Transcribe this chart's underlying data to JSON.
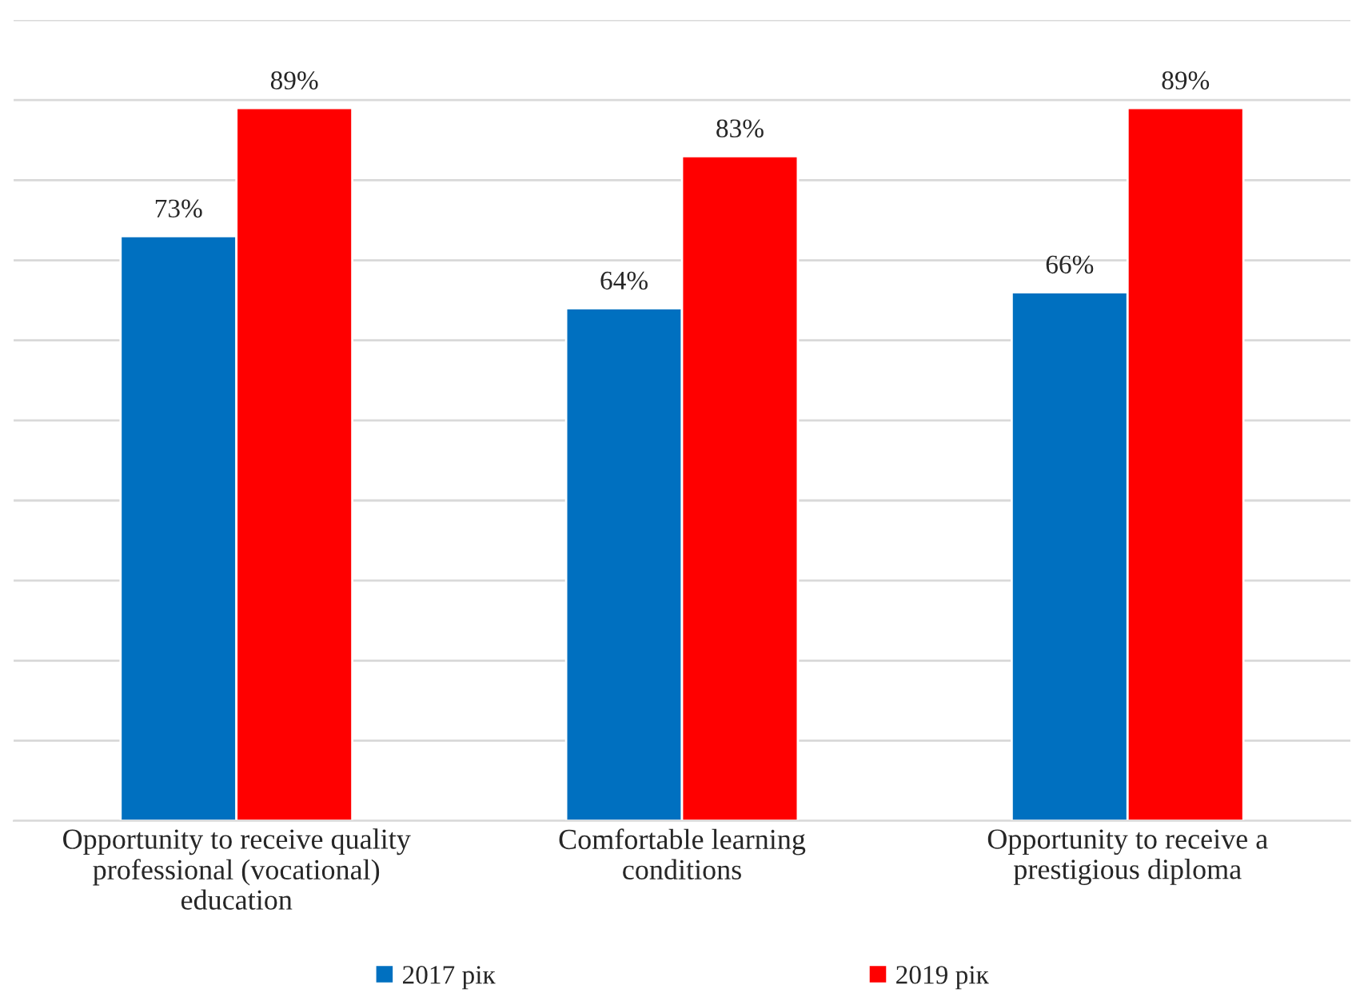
{
  "chart_data": {
    "type": "bar",
    "categories": [
      "Opportunity to receive quality professional (vocational) education",
      "Comfortable learning conditions",
      "Opportunity to receive a prestigious diploma"
    ],
    "series": [
      {
        "name": "2017 рік",
        "color": "#0070c0",
        "values": [
          73,
          64,
          66
        ],
        "value_labels": [
          "73%",
          "64%",
          "66%"
        ]
      },
      {
        "name": "2019 рік",
        "color": "#ff0000",
        "values": [
          89,
          83,
          89
        ],
        "value_labels": [
          "89%",
          "83%",
          "89%"
        ]
      }
    ],
    "ylim": [
      0,
      100
    ],
    "yticks": [
      {
        "value": 0,
        "label": null
      },
      {
        "value": 10,
        "label": null
      },
      {
        "value": 20,
        "label": null
      },
      {
        "value": 30,
        "label": null
      },
      {
        "value": 40,
        "label": null
      },
      {
        "value": 50,
        "label": null
      },
      {
        "value": 60,
        "label": null
      },
      {
        "value": 70,
        "label": null
      },
      {
        "value": 80,
        "label": null
      },
      {
        "value": 90,
        "label": null
      },
      {
        "value": 100,
        "label": null
      }
    ],
    "tick_labels": "x",
    "grid": "y",
    "legend": "bottom"
  }
}
